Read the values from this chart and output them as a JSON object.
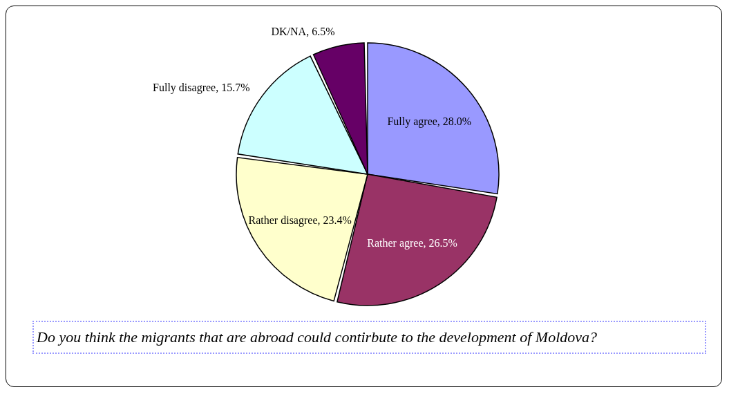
{
  "chart_data": {
    "type": "pie",
    "categories": [
      "Fully agree",
      "Rather agree",
      "Rather disagree",
      "Fully disagree",
      "DK/NA"
    ],
    "values": [
      28.0,
      26.5,
      23.4,
      15.7,
      6.5
    ],
    "value_labels": [
      "28.0%",
      "26.5%",
      "23.4%",
      "15.7%",
      "6.5%"
    ],
    "colors": [
      "#9999ff",
      "#993366",
      "#ffffcc",
      "#ccffff",
      "#660066"
    ],
    "annotations": [
      "Do you think the migrants that are abroad could contirbute to the development of Moldova?"
    ]
  }
}
